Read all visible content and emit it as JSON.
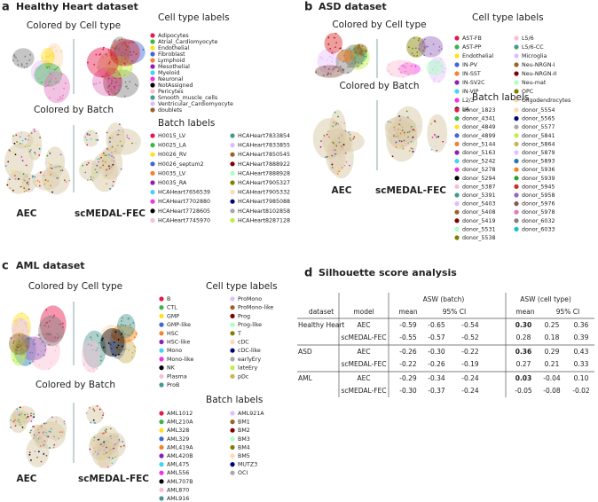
{
  "palette": [
    "#e6194b",
    "#3cb44b",
    "#ffe119",
    "#4363d8",
    "#f58231",
    "#911eb4",
    "#42d4f4",
    "#f032e6",
    "#000000",
    "#fabed4",
    "#469990",
    "#dcbeff",
    "#9a6324",
    "#800000",
    "#aaffc3",
    "#808000",
    "#ffd8b1",
    "#000075",
    "#a9a9a9",
    "#bfef45",
    "#c9b458",
    "#e6beff",
    "#1f77b4",
    "#ff7f0e",
    "#2ca02c",
    "#d62728",
    "#9467bd",
    "#8c564b",
    "#e377c2",
    "#7f7f7f",
    "#17becf"
  ],
  "panels": [
    {
      "letter": "a",
      "title": "Healthy Heart dataset",
      "rows": [
        "Colored by Cell type",
        "Colored by Batch"
      ],
      "methods": [
        "AEC",
        "scMEDAL-FEC"
      ],
      "legends": [
        {
          "title": "Cell type labels",
          "columns": [
            [
              "Adipocytes",
              "Atrial_Cardiomyocyte",
              "Endothelial",
              "Fibroblast",
              "Lymphoid",
              "Mesothelial",
              "Myeloid",
              "Neuronal",
              "NotAssigned",
              "Pericytes",
              "Smooth_muscle_cells",
              "Ventricular_Cardiomyocyte",
              "doublets"
            ]
          ]
        },
        {
          "title": "Batch labels",
          "columns": [
            [
              "H0015_LV",
              "H0025_LA",
              "H0026_RV",
              "H0026_septum2",
              "H0035_LV",
              "H0035_RA",
              "HCAHeart7656539",
              "HCAHeart7702880",
              "HCAHeart7728605",
              "HCAHeart7745970"
            ],
            [
              "HCAHeart7833854",
              "HCAHeart7833855",
              "HCAHeart7850545",
              "HCAHeart7888922",
              "HCAHeart7888928",
              "HCAHeart7905327",
              "HCAHeart7905332",
              "HCAHeart7985088",
              "HCAHeart8102858",
              "HCAHeart8287128"
            ]
          ]
        }
      ]
    },
    {
      "letter": "b",
      "title": "ASD dataset",
      "rows": [
        "Colored by Cell type",
        "Colored by Batch"
      ],
      "methods": [
        "AEC",
        "scMEDAL-FEC"
      ],
      "legends": [
        {
          "title": "Cell type labels",
          "columns": [
            [
              "AST-FB",
              "AST-PP",
              "Endothelial",
              "IN-PV",
              "IN-SST",
              "IN-SV2C",
              "IN-VIP",
              "L2/3",
              "L4"
            ],
            [
              "L5/6",
              "L5/6-CC",
              "Microglia",
              "Neu-NRGN-I",
              "Neu-NRGN-II",
              "Neu-mat",
              "OPC",
              "Oligodendrocytes"
            ]
          ]
        },
        {
          "title": "Batch labels",
          "columns": [
            [
              "donor_1823",
              "donor_4341",
              "donor_4849",
              "donor_4899",
              "donor_5144",
              "donor_5163",
              "donor_5242",
              "donor_5278",
              "donor_5294",
              "donor_5387",
              "donor_5391",
              "donor_5403",
              "donor_5408",
              "donor_5419",
              "donor_5531",
              "donor_5538"
            ],
            [
              "donor_5554",
              "donor_5565",
              "donor_5577",
              "donor_5841",
              "donor_5864",
              "donor_5879",
              "donor_5893",
              "donor_5936",
              "donor_5939",
              "donor_5945",
              "donor_5958",
              "donor_5976",
              "donor_5978",
              "donor_6032",
              "donor_6033"
            ]
          ]
        }
      ]
    },
    {
      "letter": "c",
      "title": "AML dataset",
      "rows": [
        "Colored by Cell type",
        "Colored by Batch"
      ],
      "methods": [
        "AEC",
        "scMEDAL-FEC"
      ],
      "legends": [
        {
          "title": "Cell type labels",
          "columns": [
            [
              "B",
              "CTL",
              "GMP",
              "GMP-like",
              "HSC",
              "HSC-like",
              "Mono",
              "Mono-like",
              "NK",
              "Plasma",
              "ProB"
            ],
            [
              "ProMono",
              "ProMono-like",
              "Prog",
              "Prog-like",
              "T",
              "cDC",
              "cDC-like",
              "earlyEry",
              "lateEry",
              "pDc"
            ]
          ]
        },
        {
          "title": "Batch labels",
          "columns": [
            [
              "AML1012",
              "AML210A",
              "AML328",
              "AML329",
              "AML419A",
              "AML420B",
              "AML475",
              "AML556",
              "AML707B",
              "AML870",
              "AML916"
            ],
            [
              "AML921A",
              "BM1",
              "BM2",
              "BM3",
              "BM4",
              "BM5",
              "MUTZ3",
              "OCI"
            ]
          ]
        }
      ]
    }
  ],
  "table_panel": {
    "letter": "d",
    "title": "Silhouette score analysis",
    "table": {
      "groups": [
        "ASW (batch)",
        "ASW (cell type)"
      ],
      "header": [
        "dataset",
        "model",
        "mean",
        "95% CI",
        "mean",
        "95% CI"
      ],
      "rows": [
        {
          "dataset": "Healthy Heart",
          "model": "AEC",
          "cells": [
            "-0.59",
            "-0.65",
            "-0.54",
            "0.30",
            "0.25",
            "0.36"
          ]
        },
        {
          "model": "scMEDAL-FEC",
          "cells": [
            "-0.55",
            "-0.57",
            "-0.52",
            "0.28",
            "0.18",
            "0.39"
          ]
        },
        {
          "dataset": "ASD",
          "model": "AEC",
          "cells": [
            "-0.26",
            "-0.30",
            "-0.22",
            "0.36",
            "0.29",
            "0.43"
          ]
        },
        {
          "model": "scMEDAL-FEC",
          "cells": [
            "-0.22",
            "-0.26",
            "-0.19",
            "0.27",
            "0.21",
            "0.33"
          ]
        },
        {
          "dataset": "AML",
          "model": "AEC",
          "cells": [
            "-0.29",
            "-0.34",
            "-0.24",
            "0.03",
            "-0.04",
            "0.10"
          ]
        },
        {
          "model": "scMEDAL-FEC",
          "cells": [
            "-0.30",
            "-0.37",
            "-0.24",
            "-0.05",
            "-0.08",
            "-0.02"
          ]
        }
      ]
    }
  }
}
